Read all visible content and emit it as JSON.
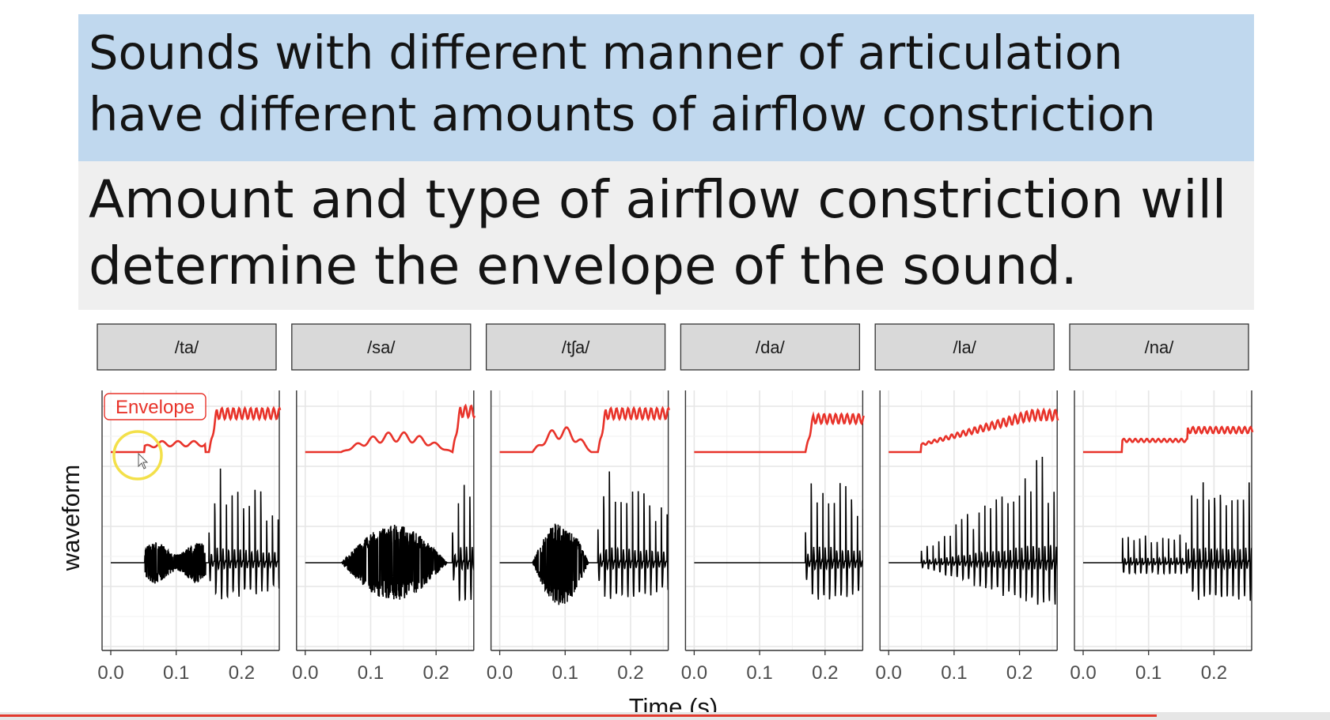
{
  "slide": {
    "heading_line1": "Sounds with different manner of articulation",
    "heading_line2": "have different amounts of airflow constriction",
    "body_line1": "Amount and type of airflow constriction will",
    "body_line2": "determine the envelope of the sound."
  },
  "video": {
    "progress": 0.87
  },
  "chart_data": {
    "type": "line",
    "facets": [
      "/ta/",
      "/sa/",
      "/tʃa/",
      "/da/",
      "/la/",
      "/na/"
    ],
    "xlabel": "Time (s)",
    "ylabel": "waveform",
    "xticks": [
      "0.0",
      "0.1",
      "0.2"
    ],
    "xlim": [
      0,
      0.26
    ],
    "grid": true,
    "annotation": "Envelope",
    "colors": {
      "envelope": "#e8332a",
      "waveform": "#000000",
      "strip": "#d9d9d9",
      "cursor": "#f3e04a"
    },
    "series": [
      {
        "facet": "/ta/",
        "onset": 0.052,
        "burst_end": 0.145,
        "voice_onset": 0.15,
        "noise_amp": 0.22,
        "voice_amp": 0.95,
        "env_noise": 0.12,
        "env_voice": 0.52
      },
      {
        "facet": "/sa/",
        "onset": 0.055,
        "burst_end": 0.225,
        "voice_onset": 0.225,
        "noise_amp": 0.4,
        "voice_amp": 1.0,
        "env_noise": 0.22,
        "env_voice": 0.55
      },
      {
        "facet": "/tʃa/",
        "onset": 0.05,
        "burst_end": 0.14,
        "voice_onset": 0.15,
        "noise_amp": 0.45,
        "voice_amp": 1.0,
        "env_noise": 0.28,
        "env_voice": 0.52
      },
      {
        "facet": "/da/",
        "onset": 0.168,
        "burst_end": 0.17,
        "voice_onset": 0.17,
        "noise_amp": 0.0,
        "voice_amp": 1.0,
        "env_noise": 0.0,
        "env_voice": 0.45
      },
      {
        "facet": "/la/",
        "onset": 0.05,
        "burst_end": 0.05,
        "voice_onset": 0.05,
        "noise_amp": 0.0,
        "voice_amp": 1.0,
        "env_noise": 0.0,
        "env_voice": 0.5
      },
      {
        "facet": "/na/",
        "onset": 0.06,
        "burst_end": 0.06,
        "voice_onset": 0.06,
        "noise_amp": 0.0,
        "voice_amp": 0.85,
        "env_noise": 0.0,
        "env_voice": 0.35
      }
    ]
  }
}
